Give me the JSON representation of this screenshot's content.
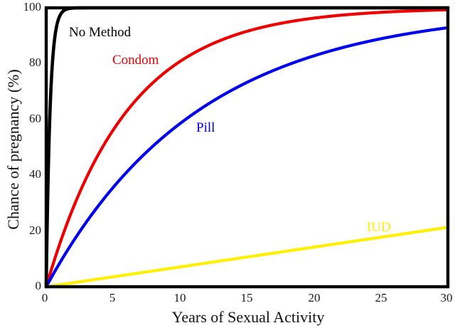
{
  "chart_data": {
    "type": "line",
    "title": "",
    "xlabel": "Years of Sexual Activity",
    "ylabel": "Chance of pregnancy (%)",
    "xlim": [
      0,
      30
    ],
    "ylim": [
      0,
      100
    ],
    "grid": false,
    "legend_position": "inline-labels-on-curves",
    "x_tick_labels": [
      "0",
      "5",
      "10",
      "15",
      "20",
      "25",
      "30"
    ],
    "y_tick_labels": [
      "100",
      "80",
      "60",
      "40",
      "20",
      "0"
    ],
    "x_sample": [
      0,
      1,
      2,
      3,
      5,
      10,
      15,
      20,
      25,
      30
    ],
    "series": [
      {
        "name": "No Method",
        "color": "#000000",
        "model": {
          "type": "exp_saturation",
          "ymax": 100,
          "k": 3.5
        },
        "values": [
          0,
          97,
          99.9,
          100,
          100,
          100,
          100,
          100,
          100,
          100
        ]
      },
      {
        "name": "Condom",
        "color": "#ee0000",
        "model": {
          "type": "exp_saturation",
          "ymax": 100,
          "k": 0.165
        },
        "values": [
          0,
          15.2,
          28.1,
          39.0,
          56.2,
          80.8,
          91.6,
          96.3,
          98.4,
          99.3
        ]
      },
      {
        "name": "Pill",
        "color": "#0000ee",
        "model": {
          "type": "exp_saturation",
          "ymax": 100,
          "k": 0.088
        },
        "values": [
          0,
          8.4,
          16.1,
          23.2,
          35.6,
          58.5,
          73.3,
          82.8,
          88.9,
          92.9
        ]
      },
      {
        "name": "IUD",
        "color": "#ffef00",
        "model": {
          "type": "linear",
          "slope": 0.71
        },
        "values": [
          0,
          0.7,
          1.4,
          2.1,
          3.6,
          7.1,
          10.7,
          14.2,
          17.8,
          21.3
        ]
      }
    ]
  }
}
